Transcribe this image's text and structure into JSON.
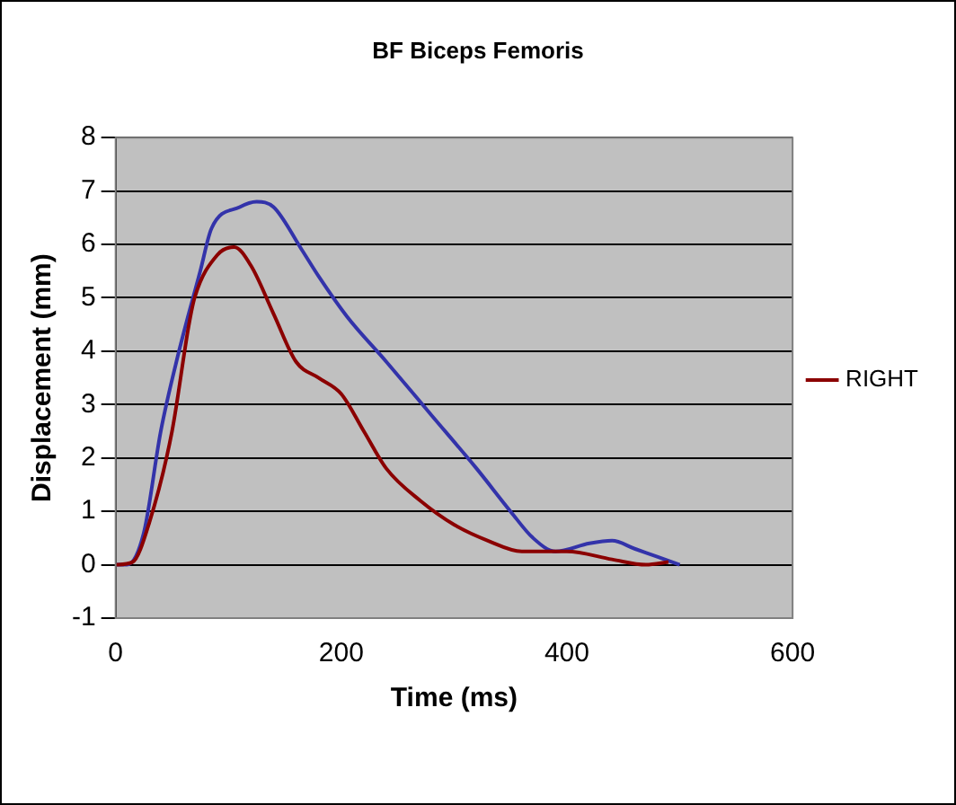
{
  "chart_data": {
    "type": "line",
    "title": "BF Biceps Femoris",
    "xlabel": "Time (ms)",
    "ylabel": "Displacement (mm)",
    "xlim": [
      0,
      600
    ],
    "xticks": [
      0,
      200,
      400,
      600
    ],
    "ylim": [
      -1,
      8
    ],
    "yticks": [
      -1,
      0,
      1,
      2,
      3,
      4,
      5,
      6,
      7,
      8
    ],
    "grid": "y",
    "legend": "right",
    "marker": "none",
    "line_style": "solid",
    "series": [
      {
        "name": "RIGHT",
        "color": "#8b0000",
        "x": [
          0,
          15,
          30,
          50,
          65,
          70,
          90,
          105,
          120,
          140,
          160,
          180,
          200,
          220,
          240,
          270,
          300,
          330,
          360,
          400,
          440,
          470,
          490
        ],
        "values": [
          0,
          0.05,
          0.8,
          2.5,
          4.5,
          5.0,
          5.8,
          5.95,
          5.6,
          4.7,
          3.8,
          3.5,
          3.2,
          2.5,
          1.8,
          1.2,
          0.75,
          0.45,
          0.25,
          0.25,
          0.1,
          0,
          0.05
        ]
      },
      {
        "color": "#3333aa",
        "x": [
          0,
          10,
          25,
          40,
          55,
          75,
          85,
          110,
          125,
          140,
          165,
          180,
          205,
          240,
          280,
          320,
          350,
          370,
          390,
          420,
          440,
          460,
          480,
          500
        ],
        "values": [
          0,
          0,
          0.6,
          2.5,
          3.9,
          5.5,
          6.3,
          6.7,
          6.8,
          6.7,
          5.9,
          5.4,
          4.65,
          3.8,
          2.8,
          1.8,
          1.0,
          0.5,
          0.25,
          0.4,
          0.45,
          0.3,
          0.15,
          0
        ]
      }
    ]
  }
}
